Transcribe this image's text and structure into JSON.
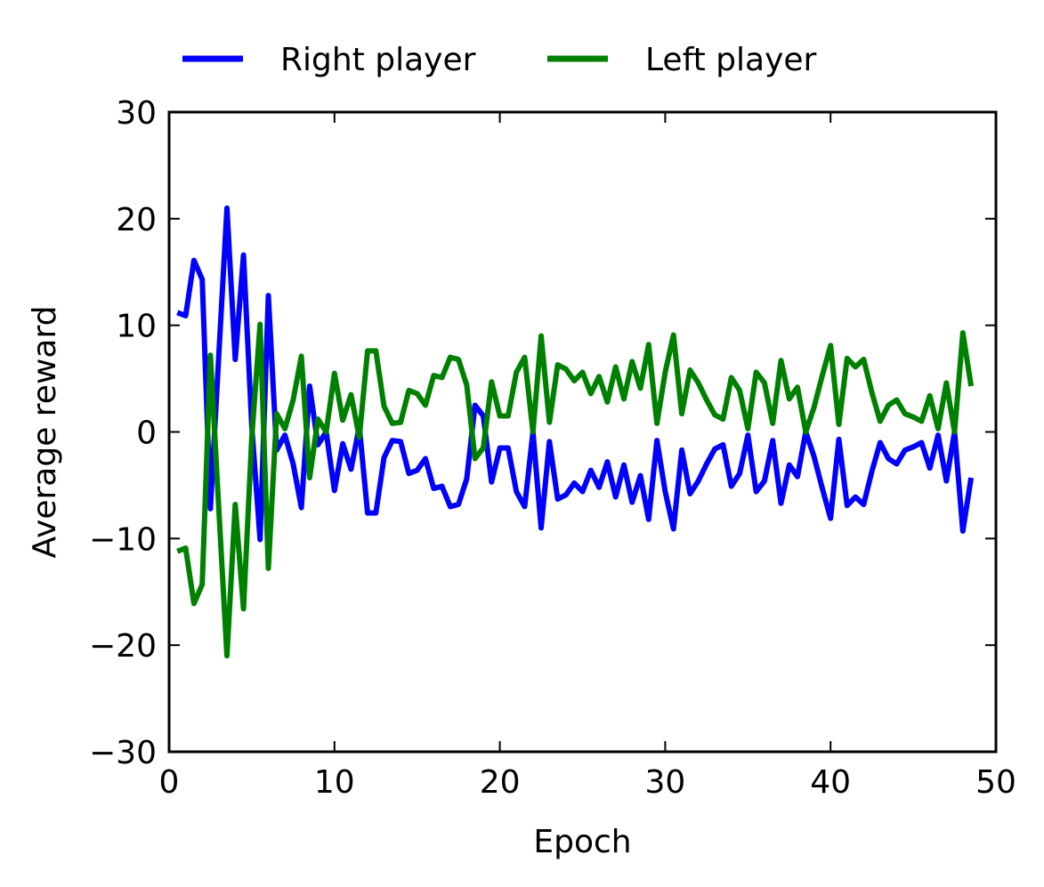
{
  "chart_data": {
    "type": "line",
    "xlabel": "Epoch",
    "ylabel": "Average reward",
    "xlim": [
      0,
      50
    ],
    "ylim": [
      -30,
      30
    ],
    "xticks": [
      0,
      10,
      20,
      30,
      40,
      50
    ],
    "yticks": [
      30,
      20,
      10,
      0,
      -10,
      -20,
      -30
    ],
    "xtick_labels": [
      "0",
      "10",
      "20",
      "30",
      "40",
      "50"
    ],
    "ytick_labels": [
      "30",
      "20",
      "10",
      "0",
      "−10",
      "−20",
      "−30"
    ],
    "grid": false,
    "legend_position": "top",
    "x": [
      0.5,
      1.0,
      1.5,
      2.0,
      2.5,
      3.0,
      3.5,
      4.0,
      4.5,
      5.0,
      5.5,
      6.0,
      6.5,
      7.0,
      7.5,
      8.0,
      8.5,
      9.0,
      9.5,
      10.0,
      10.5,
      11.0,
      11.5,
      12.0,
      12.5,
      13.0,
      13.5,
      14.0,
      14.5,
      15.0,
      15.5,
      16.0,
      16.5,
      17.0,
      17.5,
      18.0,
      18.5,
      19.0,
      19.5,
      20.0,
      20.5,
      21.0,
      21.5,
      22.0,
      22.5,
      23.0,
      23.5,
      24.0,
      24.5,
      25.0,
      25.5,
      26.0,
      26.5,
      27.0,
      27.5,
      28.0,
      28.5,
      29.0,
      29.5,
      30.0,
      30.5,
      31.0,
      31.5,
      32.0,
      32.5,
      33.0,
      33.5,
      34.0,
      34.5,
      35.0,
      35.5,
      36.0,
      36.5,
      37.0,
      37.5,
      38.0,
      38.5,
      39.0,
      39.5,
      40.0,
      40.5,
      41.0,
      41.5,
      42.0,
      42.5,
      43.0,
      43.5,
      44.0,
      44.5,
      45.0,
      45.5,
      46.0,
      46.5,
      47.0,
      47.5,
      48.0,
      48.5
    ],
    "series": [
      {
        "name": "Right player",
        "color": "#0000ff",
        "values": [
          11.2,
          10.9,
          16.1,
          14.3,
          -7.2,
          7.0,
          21.0,
          6.8,
          16.6,
          0.5,
          -10.1,
          12.8,
          -1.7,
          -0.3,
          -3.0,
          -7.1,
          4.3,
          -1.2,
          0.0,
          -5.5,
          -1.1,
          -3.5,
          0.5,
          -7.6,
          -7.6,
          -2.4,
          -0.8,
          -0.9,
          -3.9,
          -3.6,
          -2.5,
          -5.3,
          -5.1,
          -7.0,
          -6.8,
          -4.4,
          2.5,
          1.5,
          -4.7,
          -1.5,
          -1.5,
          -5.6,
          -7.0,
          0.0,
          -9.0,
          -0.9,
          -6.3,
          -5.9,
          -4.8,
          -5.6,
          -3.6,
          -5.2,
          -2.8,
          -6.1,
          -3.1,
          -6.6,
          -4.1,
          -8.2,
          -0.8,
          -5.6,
          -9.1,
          -1.7,
          -5.8,
          -4.6,
          -3.0,
          -1.6,
          -1.2,
          -5.1,
          -3.9,
          -0.3,
          -5.6,
          -4.6,
          -0.8,
          -6.7,
          -3.1,
          -4.2,
          0.0,
          -2.3,
          -5.3,
          -8.1,
          -0.7,
          -6.9,
          -6.1,
          -6.8,
          -3.7,
          -1.0,
          -2.5,
          -3.0,
          -1.7,
          -1.4,
          -1.0,
          -3.4,
          -0.3,
          -4.6,
          0.0,
          -9.3,
          -4.3
        ]
      },
      {
        "name": "Left player",
        "color": "#008000",
        "values": [
          -11.2,
          -10.9,
          -16.1,
          -14.3,
          7.2,
          -7.0,
          -21.0,
          -6.8,
          -16.6,
          -0.5,
          10.1,
          -12.8,
          1.7,
          0.3,
          3.0,
          7.1,
          -4.3,
          1.2,
          0.0,
          5.5,
          1.1,
          3.5,
          -0.5,
          7.6,
          7.6,
          2.4,
          0.8,
          0.9,
          3.9,
          3.6,
          2.5,
          5.3,
          5.1,
          7.0,
          6.8,
          4.4,
          -2.5,
          -1.5,
          4.7,
          1.5,
          1.5,
          5.6,
          7.0,
          0.0,
          9.0,
          0.9,
          6.3,
          5.9,
          4.8,
          5.6,
          3.6,
          5.2,
          2.8,
          6.1,
          3.1,
          6.6,
          4.1,
          8.2,
          0.8,
          5.6,
          9.1,
          1.7,
          5.8,
          4.6,
          3.0,
          1.6,
          1.2,
          5.1,
          3.9,
          0.3,
          5.6,
          4.6,
          0.8,
          6.7,
          3.1,
          4.2,
          0.0,
          2.3,
          5.3,
          8.1,
          0.7,
          6.9,
          6.1,
          6.8,
          3.7,
          1.0,
          2.5,
          3.0,
          1.7,
          1.4,
          1.0,
          3.4,
          0.3,
          4.6,
          0.0,
          9.3,
          4.3
        ]
      }
    ]
  }
}
